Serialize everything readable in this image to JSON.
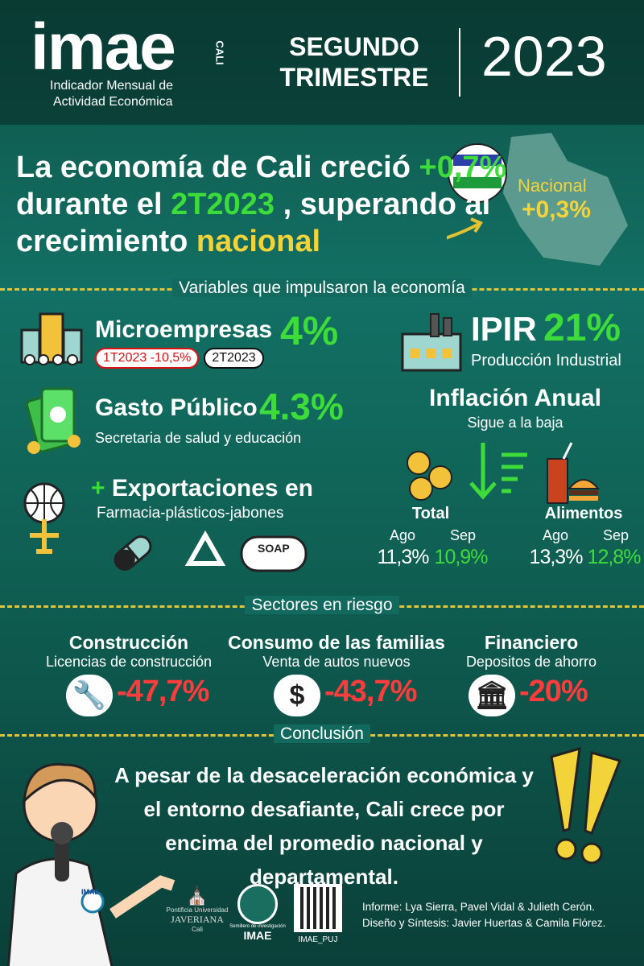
{
  "header": {
    "brand": "imae",
    "brand_city": "CALI",
    "subtitle_lines": [
      "Indicador Mensual de",
      "Actividad Económica"
    ],
    "period_lines": [
      "SEGUNDO",
      "TRIMESTRE"
    ],
    "year": "2023"
  },
  "headline": {
    "line1": [
      "La economía de Cali creció",
      "+0,7%"
    ],
    "line2": [
      "durante el",
      "2T2023",
      ", superando al"
    ],
    "line3": [
      "crecimiento",
      "nacional"
    ],
    "national_label": "Nacional",
    "national_value": "+0,3%"
  },
  "drivers": {
    "title": "Variables que impulsaron la economía",
    "micro": {
      "label": "Microempresas",
      "value": "4%",
      "badges": [
        "1T2023 -10,5%",
        "2T2023"
      ]
    },
    "ipir": {
      "label": "IPIR",
      "value": "21%",
      "sub": "Producción Industrial"
    },
    "gasto": {
      "label": "Gasto Público",
      "value": "4.3%",
      "sub": "Secretaria de salud y educación"
    },
    "export": {
      "plus": "+",
      "label": "Exportaciones en",
      "sub": "Farmacia-plásticos-jabones",
      "soap": "SOAP"
    },
    "inflation": {
      "title": "Inflación Anual",
      "sub": "Sigue a la baja",
      "groups": [
        {
          "label": "Total",
          "months": [
            "Ago",
            "Sep"
          ],
          "values": [
            "11,3%",
            "10,9%"
          ]
        },
        {
          "label": "Alimentos",
          "months": [
            "Ago",
            "Sep"
          ],
          "values": [
            "13,3%",
            "12,8%"
          ]
        }
      ]
    }
  },
  "risk": {
    "title": "Sectores en riesgo",
    "sectors": [
      {
        "name": "Construcción",
        "sub": "Licencias de construcción",
        "value": "-47,7%"
      },
      {
        "name": "Consumo de las familias",
        "sub": "Venta de autos nuevos",
        "value": "-43,7%"
      },
      {
        "name": "Financiero",
        "sub": "Depositos de ahorro",
        "value": "-20%"
      }
    ]
  },
  "conclusion": {
    "title": "Conclusión",
    "text": "A pesar de la desaceleración económica y el entorno desafiante, Cali crece por encima del promedio nacional y departamental.",
    "badge": "IMAE"
  },
  "footer": {
    "university": [
      "Pontificia Universidad",
      "JAVERIANA",
      "Cali"
    ],
    "seedbed": [
      "Semillero de investigación",
      "IMAE"
    ],
    "social": "IMAE_PUJ",
    "credits": [
      "Informe: Lya Sierra, Pavel Vidal & Julieth Cerón.",
      "Diseño y Síntesis: Javier Huertas & Camila Flórez."
    ]
  }
}
